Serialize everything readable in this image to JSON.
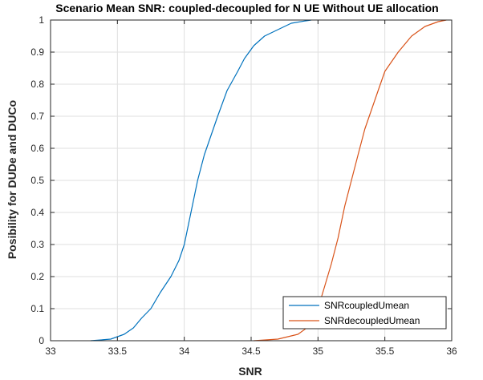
{
  "chart_data": {
    "type": "line",
    "title": "Scenario Mean SNR: coupled-decoupled for N UE Without UE allocation",
    "xlabel": "SNR",
    "ylabel": "Posibility for DUDe and DUCo",
    "xlim": [
      33,
      36
    ],
    "ylim": [
      0,
      1
    ],
    "x_ticks": [
      33,
      33.5,
      34,
      34.5,
      35,
      35.5,
      36
    ],
    "x_tick_labels": [
      "33",
      "33.5",
      "34",
      "34.5",
      "35",
      "35.5",
      "36"
    ],
    "y_ticks": [
      0,
      0.1,
      0.2,
      0.3,
      0.4,
      0.5,
      0.6,
      0.7,
      0.8,
      0.9,
      1
    ],
    "y_tick_labels": [
      "0",
      "0.1",
      "0.2",
      "0.3",
      "0.4",
      "0.5",
      "0.6",
      "0.7",
      "0.8",
      "0.9",
      "1"
    ],
    "grid": true,
    "legend_position": "bottom-right",
    "series": [
      {
        "name": "SNRcoupledUmean",
        "color": "#0072BD",
        "x": [
          33.3,
          33.45,
          33.55,
          33.62,
          33.68,
          33.75,
          33.82,
          33.9,
          33.96,
          34.0,
          34.05,
          34.1,
          34.15,
          34.2,
          34.25,
          34.32,
          34.4,
          34.45,
          34.52,
          34.6,
          34.7,
          34.8,
          34.9,
          34.95
        ],
        "y": [
          0,
          0.005,
          0.02,
          0.04,
          0.07,
          0.1,
          0.15,
          0.2,
          0.25,
          0.3,
          0.4,
          0.5,
          0.58,
          0.64,
          0.7,
          0.78,
          0.84,
          0.88,
          0.92,
          0.95,
          0.97,
          0.99,
          0.997,
          1.0
        ]
      },
      {
        "name": "SNRdecoupledUmean",
        "color": "#D95319",
        "x": [
          34.52,
          34.7,
          34.85,
          34.95,
          35.0,
          35.05,
          35.1,
          35.15,
          35.2,
          35.25,
          35.3,
          35.35,
          35.4,
          35.45,
          35.5,
          35.6,
          35.7,
          35.8,
          35.9,
          35.96
        ],
        "y": [
          0,
          0.005,
          0.02,
          0.05,
          0.1,
          0.17,
          0.24,
          0.32,
          0.42,
          0.5,
          0.58,
          0.66,
          0.72,
          0.78,
          0.84,
          0.9,
          0.95,
          0.98,
          0.995,
          1.0
        ]
      }
    ]
  }
}
